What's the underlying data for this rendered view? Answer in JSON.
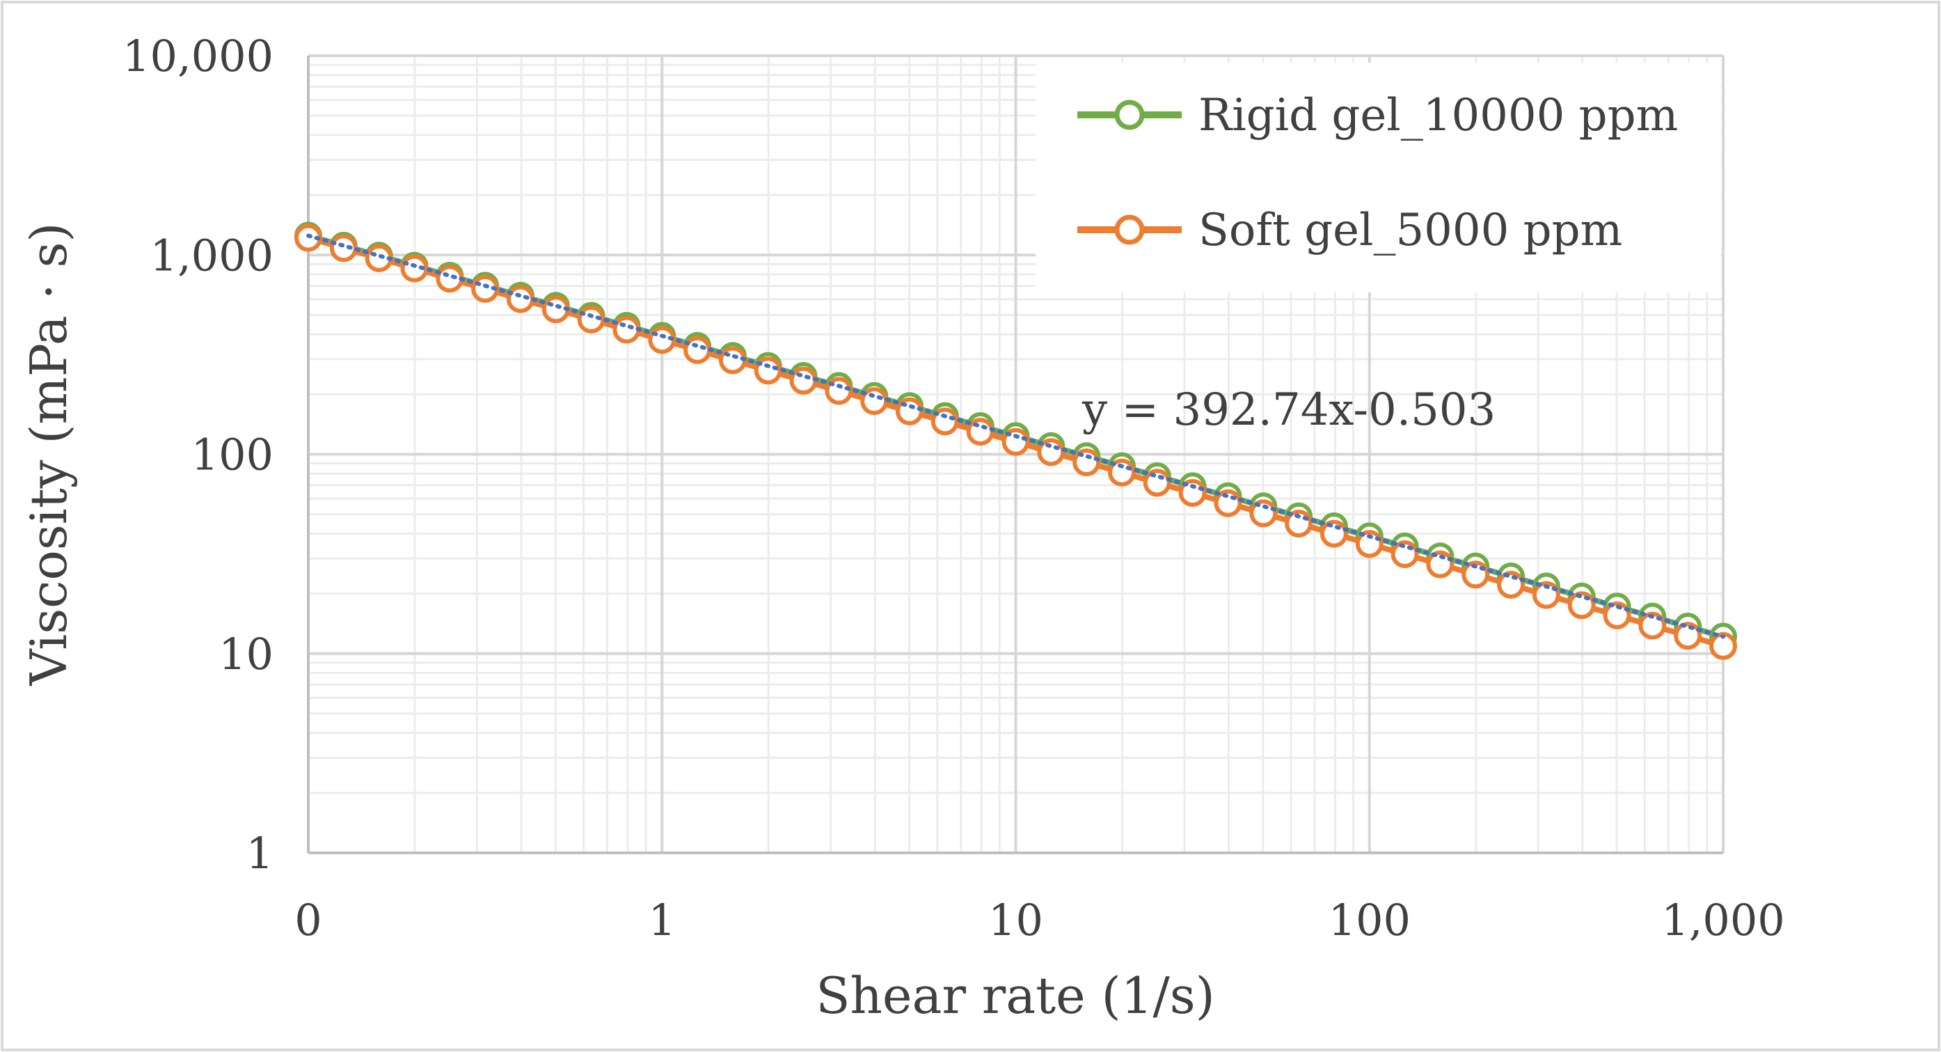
{
  "chart_data": {
    "type": "scatter",
    "title": "",
    "xlabel": "Shear rate (1/s)",
    "ylabel": "Viscosity (mPa · s)",
    "x_scale": "log",
    "y_scale": "log",
    "xlim": [
      0.1,
      1000
    ],
    "ylim": [
      1,
      10000
    ],
    "x_tick_values": [
      0.1,
      1,
      10,
      100,
      1000
    ],
    "x_tick_labels": [
      "0",
      "1",
      "10",
      "100",
      "1,000"
    ],
    "y_tick_values": [
      1,
      10,
      100,
      1000,
      10000
    ],
    "y_tick_labels": [
      "1",
      "10",
      "100",
      "1,000",
      "10,000"
    ],
    "grid": true,
    "legend_position": "top-right",
    "points_per_decade": 10,
    "x_start": 0.1,
    "num_points": 41,
    "series": [
      {
        "name": "Rigid gel_10000 ppm",
        "color": "#70ad47",
        "coef": 392.74,
        "exponent": -0.503,
        "marker": "open-circle"
      },
      {
        "name": "Soft gel_5000 ppm",
        "color": "#ed7d31",
        "coef": 375.0,
        "exponent": -0.512,
        "marker": "open-circle"
      }
    ],
    "trendline": {
      "label": "y = 392.74x-0.503",
      "coef": 392.74,
      "exponent": -0.503,
      "color": "#4472c4",
      "style": "dotted"
    }
  }
}
